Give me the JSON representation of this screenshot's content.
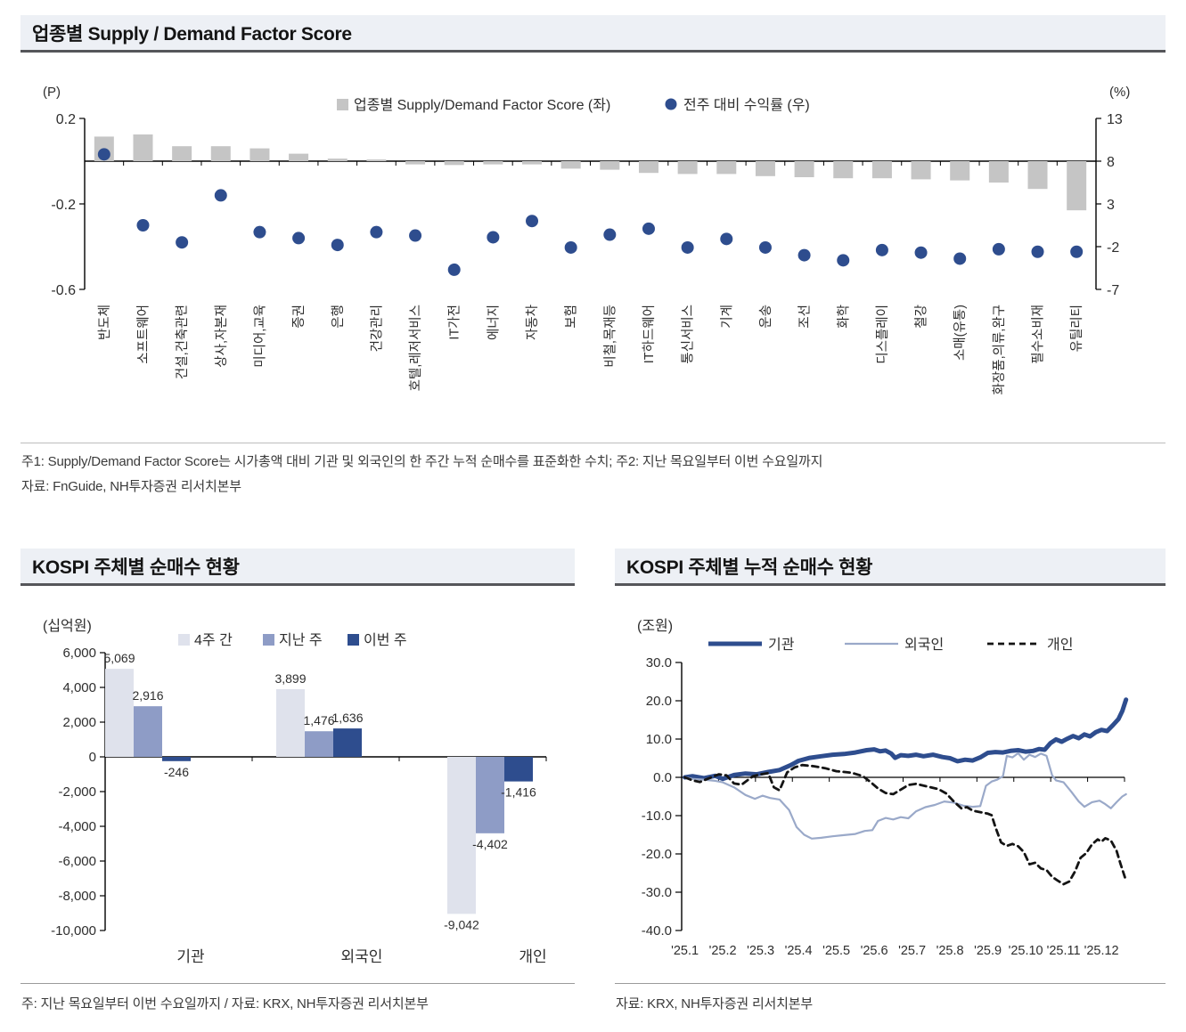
{
  "colors": {
    "navy": "#2e4d8e",
    "bar_gray": "#c5c5c5",
    "pale_bar": "#dfe2ec",
    "mid_bar": "#8e9cc6",
    "light_line": "#9aa9c9",
    "black_line": "#141414",
    "header_bg": "#edf0f5"
  },
  "footnotes": {
    "p1a": "주1: Supply/Demand Factor Score는 시가총액 대비 기관 및 외국인의 한 주간 누적 순매수를 표준화한 수치; 주2: 지난 목요일부터 이번 수요일까지",
    "p1b": "자료: FnGuide, NH투자증권 리서치본부",
    "p2": "주: 지난 목요일부터 이번 수요일까지 / 자료: KRX, NH투자증권 리서치본부",
    "p3": "자료: KRX, NH투자증권 리서치본부"
  },
  "chart_data": [
    {
      "type": "bar",
      "title": "업종별 Supply / Demand Factor Score",
      "unit_left": "(P)",
      "unit_right": "(%)",
      "legend": [
        "업종별 Supply/Demand Factor Score (좌)",
        "전주 대비 수익률 (우)"
      ],
      "categories": [
        "반도체",
        "소프트웨어",
        "건설,건축관련",
        "상사,자본재",
        "미디어,교육",
        "증권",
        "은행",
        "건강관리",
        "호텔,레저서비스",
        "IT가전",
        "에너지",
        "자동차",
        "보험",
        "비철,목재등",
        "IT하드웨어",
        "통신서비스",
        "기계",
        "운송",
        "조선",
        "화학",
        "디스플레이",
        "철강",
        "소매(유통)",
        "화장품,의류,완구",
        "필수소비재",
        "유틸리티"
      ],
      "series": [
        {
          "name": "업종별 Supply/Demand Factor Score (좌)",
          "axis": "left",
          "values": [
            0.115,
            0.125,
            0.07,
            0.07,
            0.06,
            0.035,
            0.012,
            0.008,
            -0.015,
            -0.018,
            -0.015,
            -0.015,
            -0.035,
            -0.04,
            -0.055,
            -0.06,
            -0.06,
            -0.07,
            -0.075,
            -0.08,
            -0.08,
            -0.085,
            -0.09,
            -0.1,
            -0.13,
            -0.23
          ]
        },
        {
          "name": "전주 대비 수익률 (우)",
          "axis": "right",
          "values": [
            8.8,
            0.5,
            -1.5,
            4.0,
            -0.3,
            -1.0,
            -1.8,
            -0.3,
            -0.7,
            -4.7,
            -0.9,
            1.0,
            -2.1,
            -0.6,
            0.1,
            -2.1,
            -1.1,
            -2.1,
            -3.0,
            -3.6,
            -2.4,
            -2.7,
            -3.4,
            -2.3,
            -2.6,
            -2.6
          ]
        }
      ],
      "ylim_left": [
        -0.6,
        0.2
      ],
      "yticks_left": [
        "0.2",
        "-0.2",
        "-0.6"
      ],
      "ylim_right": [
        -7,
        13
      ],
      "yticks_right": [
        "13",
        "8",
        "3",
        "-2",
        "-7"
      ],
      "grid": false
    },
    {
      "type": "bar",
      "title": "KOSPI 주체별 순매수 현황",
      "unit": "(십억원)",
      "categories": [
        "기관",
        "외국인",
        "개인"
      ],
      "series": [
        {
          "name": "4주 간",
          "values": [
            5069,
            3899,
            -9042
          ]
        },
        {
          "name": "지난 주",
          "values": [
            2916,
            1476,
            -4402
          ]
        },
        {
          "name": "이번 주",
          "values": [
            -246,
            1636,
            -1416
          ]
        }
      ],
      "data_labels": [
        [
          "5,069",
          "3,899",
          "-9,042"
        ],
        [
          "2,916",
          "1,476",
          "-4,402"
        ],
        [
          "-246",
          "1,636",
          "-1,416"
        ]
      ],
      "yticks": [
        "6,000",
        "4,000",
        "2,000",
        "0",
        "-2,000",
        "-4,000",
        "-6,000",
        "-8,000",
        "-10,000"
      ],
      "ylim": [
        -10000,
        6000
      ],
      "grid": false
    },
    {
      "type": "line",
      "title": "KOSPI 주체별 누적 순매수 현황",
      "unit": "(조원)",
      "xticklabels": [
        "'25.1",
        "'25.2",
        "'25.3",
        "'25.4",
        "'25.5",
        "'25.6",
        "'25.7",
        "'25.8",
        "'25.9",
        "'25.10",
        "'25.11",
        "'25.12"
      ],
      "yticks": [
        "30.0",
        "20.0",
        "10.0",
        "0.0",
        "-10.0",
        "-20.0",
        "-30.0",
        "-40.0"
      ],
      "ylim": [
        -40,
        30
      ],
      "grid": false,
      "series": [
        {
          "name": "기관",
          "style": "thick",
          "points": [
            [
              1,
              0
            ],
            [
              1.2,
              0.3
            ],
            [
              1.5,
              -0.2
            ],
            [
              1.8,
              0.4
            ],
            [
              2.0,
              -0.4
            ],
            [
              2.3,
              0.6
            ],
            [
              2.6,
              1.0
            ],
            [
              2.9,
              0.8
            ],
            [
              3.2,
              1.4
            ],
            [
              3.5,
              1.9
            ],
            [
              3.8,
              3.2
            ],
            [
              4.0,
              4.3
            ],
            [
              4.3,
              5.1
            ],
            [
              4.6,
              5.5
            ],
            [
              4.9,
              5.9
            ],
            [
              5.2,
              6.1
            ],
            [
              5.5,
              6.5
            ],
            [
              5.8,
              7.1
            ],
            [
              6.0,
              7.3
            ],
            [
              6.15,
              6.8
            ],
            [
              6.3,
              7.0
            ],
            [
              6.45,
              6.2
            ],
            [
              6.55,
              5.1
            ],
            [
              6.7,
              5.8
            ],
            [
              6.9,
              5.6
            ],
            [
              7.1,
              5.9
            ],
            [
              7.3,
              5.5
            ],
            [
              7.55,
              5.9
            ],
            [
              7.8,
              5.3
            ],
            [
              8.0,
              5.0
            ],
            [
              8.2,
              4.2
            ],
            [
              8.4,
              4.6
            ],
            [
              8.6,
              4.4
            ],
            [
              8.8,
              5.2
            ],
            [
              9.0,
              6.4
            ],
            [
              9.2,
              6.6
            ],
            [
              9.4,
              6.5
            ],
            [
              9.6,
              6.9
            ],
            [
              9.8,
              7.1
            ],
            [
              10.0,
              6.7
            ],
            [
              10.2,
              6.9
            ],
            [
              10.35,
              7.4
            ],
            [
              10.5,
              7.2
            ],
            [
              10.65,
              8.9
            ],
            [
              10.8,
              9.9
            ],
            [
              10.95,
              9.3
            ],
            [
              11.1,
              10.1
            ],
            [
              11.25,
              10.8
            ],
            [
              11.4,
              10.2
            ],
            [
              11.55,
              11.2
            ],
            [
              11.7,
              10.7
            ],
            [
              11.85,
              11.8
            ],
            [
              12.0,
              12.4
            ],
            [
              12.15,
              12.1
            ],
            [
              12.3,
              13.6
            ],
            [
              12.45,
              15.2
            ],
            [
              12.55,
              17.3
            ],
            [
              12.65,
              20.3
            ]
          ]
        },
        {
          "name": "외국인",
          "style": "thin",
          "points": [
            [
              1,
              0
            ],
            [
              1.2,
              -0.4
            ],
            [
              1.5,
              -0.6
            ],
            [
              1.8,
              -0.9
            ],
            [
              2.0,
              -1.3
            ],
            [
              2.3,
              -2.6
            ],
            [
              2.6,
              -4.6
            ],
            [
              2.85,
              -5.6
            ],
            [
              3.05,
              -4.8
            ],
            [
              3.25,
              -5.4
            ],
            [
              3.5,
              -5.8
            ],
            [
              3.75,
              -8.5
            ],
            [
              3.95,
              -13.0
            ],
            [
              4.15,
              -15.0
            ],
            [
              4.35,
              -16.0
            ],
            [
              4.6,
              -15.8
            ],
            [
              4.9,
              -15.4
            ],
            [
              5.2,
              -15.1
            ],
            [
              5.5,
              -14.8
            ],
            [
              5.75,
              -14.0
            ],
            [
              5.95,
              -13.8
            ],
            [
              6.1,
              -11.4
            ],
            [
              6.3,
              -10.6
            ],
            [
              6.5,
              -11.0
            ],
            [
              6.7,
              -10.4
            ],
            [
              6.9,
              -10.7
            ],
            [
              7.1,
              -8.9
            ],
            [
              7.35,
              -7.8
            ],
            [
              7.6,
              -7.2
            ],
            [
              7.85,
              -6.3
            ],
            [
              8.1,
              -6.6
            ],
            [
              8.35,
              -7.4
            ],
            [
              8.6,
              -7.7
            ],
            [
              8.8,
              -7.5
            ],
            [
              8.95,
              -2.2
            ],
            [
              9.1,
              -1.1
            ],
            [
              9.25,
              -0.6
            ],
            [
              9.4,
              0.3
            ],
            [
              9.5,
              5.6
            ],
            [
              9.65,
              5.2
            ],
            [
              9.8,
              6.3
            ],
            [
              9.95,
              4.6
            ],
            [
              10.1,
              5.9
            ],
            [
              10.25,
              5.3
            ],
            [
              10.4,
              6.2
            ],
            [
              10.55,
              5.6
            ],
            [
              10.7,
              0.5
            ],
            [
              10.8,
              -0.8
            ],
            [
              11.0,
              -1.3
            ],
            [
              11.2,
              -3.7
            ],
            [
              11.4,
              -6.3
            ],
            [
              11.55,
              -7.7
            ],
            [
              11.75,
              -6.5
            ],
            [
              11.95,
              -6.1
            ],
            [
              12.1,
              -7.0
            ],
            [
              12.25,
              -8.1
            ],
            [
              12.4,
              -6.5
            ],
            [
              12.55,
              -5.0
            ],
            [
              12.65,
              -4.4
            ]
          ]
        },
        {
          "name": "개인",
          "style": "dashed",
          "points": [
            [
              1,
              0
            ],
            [
              1.2,
              -0.8
            ],
            [
              1.4,
              -1.2
            ],
            [
              1.6,
              -0.4
            ],
            [
              1.9,
              0.8
            ],
            [
              2.1,
              0.5
            ],
            [
              2.3,
              -1.6
            ],
            [
              2.5,
              -1.9
            ],
            [
              2.8,
              0.3
            ],
            [
              3.0,
              0.8
            ],
            [
              3.2,
              1.1
            ],
            [
              3.35,
              -2.6
            ],
            [
              3.5,
              -3.4
            ],
            [
              3.7,
              1.3
            ],
            [
              3.9,
              2.6
            ],
            [
              4.1,
              3.2
            ],
            [
              4.4,
              2.9
            ],
            [
              4.7,
              2.4
            ],
            [
              5.0,
              1.6
            ],
            [
              5.4,
              1.2
            ],
            [
              5.7,
              0.3
            ],
            [
              5.9,
              -1.2
            ],
            [
              6.1,
              -2.9
            ],
            [
              6.3,
              -4.1
            ],
            [
              6.5,
              -4.4
            ],
            [
              6.7,
              -3.2
            ],
            [
              6.9,
              -2.0
            ],
            [
              7.1,
              -1.7
            ],
            [
              7.4,
              -2.4
            ],
            [
              7.7,
              -3.1
            ],
            [
              7.9,
              -4.2
            ],
            [
              8.1,
              -6.3
            ],
            [
              8.3,
              -8.1
            ],
            [
              8.45,
              -7.8
            ],
            [
              8.6,
              -8.7
            ],
            [
              8.8,
              -9.1
            ],
            [
              9.0,
              -9.5
            ],
            [
              9.1,
              -9.9
            ],
            [
              9.2,
              -13.0
            ],
            [
              9.35,
              -17.0
            ],
            [
              9.5,
              -17.9
            ],
            [
              9.65,
              -17.4
            ],
            [
              9.8,
              -18.0
            ],
            [
              9.95,
              -19.5
            ],
            [
              10.1,
              -22.7
            ],
            [
              10.25,
              -22.3
            ],
            [
              10.4,
              -23.8
            ],
            [
              10.55,
              -24.2
            ],
            [
              10.7,
              -26.0
            ],
            [
              10.85,
              -27.0
            ],
            [
              11.0,
              -27.9
            ],
            [
              11.15,
              -27.2
            ],
            [
              11.3,
              -24.6
            ],
            [
              11.45,
              -21.0
            ],
            [
              11.6,
              -19.8
            ],
            [
              11.75,
              -17.5
            ],
            [
              11.9,
              -16.2
            ],
            [
              12.0,
              -16.8
            ],
            [
              12.1,
              -15.9
            ],
            [
              12.25,
              -16.5
            ],
            [
              12.4,
              -19.2
            ],
            [
              12.5,
              -22.5
            ],
            [
              12.65,
              -27.0
            ]
          ]
        }
      ]
    }
  ]
}
